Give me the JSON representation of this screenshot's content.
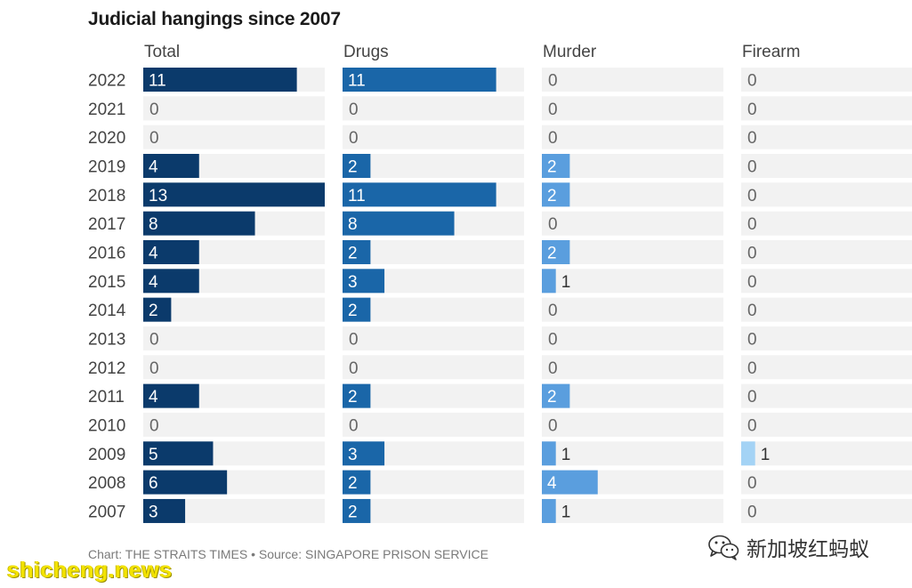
{
  "page": {
    "title": "Judicial hangings since 2007",
    "footer": "Chart: THE STRAITS TIMES • Source: SINGAPORE PRISON SERVICE",
    "watermark_left": "shicheng.news",
    "watermark_right": "新加坡红蚂蚁",
    "watermark_icon": "wechat-icon"
  },
  "chart_data": {
    "type": "bar",
    "orientation": "horizontal",
    "title": "Judicial hangings since 2007",
    "categories": [
      "2022",
      "2021",
      "2020",
      "2019",
      "2018",
      "2017",
      "2016",
      "2015",
      "2014",
      "2013",
      "2012",
      "2011",
      "2010",
      "2009",
      "2008",
      "2007"
    ],
    "series": [
      {
        "name": "Total",
        "values": [
          11,
          0,
          0,
          4,
          13,
          8,
          4,
          4,
          2,
          0,
          0,
          4,
          0,
          5,
          6,
          3
        ],
        "color": "#0b3a6b",
        "label_color": "#ffffff"
      },
      {
        "name": "Drugs",
        "values": [
          11,
          0,
          0,
          2,
          11,
          8,
          2,
          3,
          2,
          0,
          0,
          2,
          0,
          3,
          2,
          2
        ],
        "color": "#1a66a8",
        "label_color": "#ffffff"
      },
      {
        "name": "Murder",
        "values": [
          0,
          0,
          0,
          2,
          2,
          0,
          2,
          1,
          0,
          0,
          0,
          2,
          0,
          1,
          4,
          1
        ],
        "color": "#5a9ede",
        "label_color": "#ffffff"
      },
      {
        "name": "Firearm",
        "values": [
          0,
          0,
          0,
          0,
          0,
          0,
          0,
          0,
          0,
          0,
          0,
          0,
          0,
          1,
          0,
          0
        ],
        "color": "#a4d3f5",
        "label_color": "#333333"
      }
    ],
    "xlim": [
      0,
      13
    ],
    "track_color": "#f2f2f2",
    "layout": "small multiples, one panel per series",
    "legend": "none",
    "grid": false
  }
}
